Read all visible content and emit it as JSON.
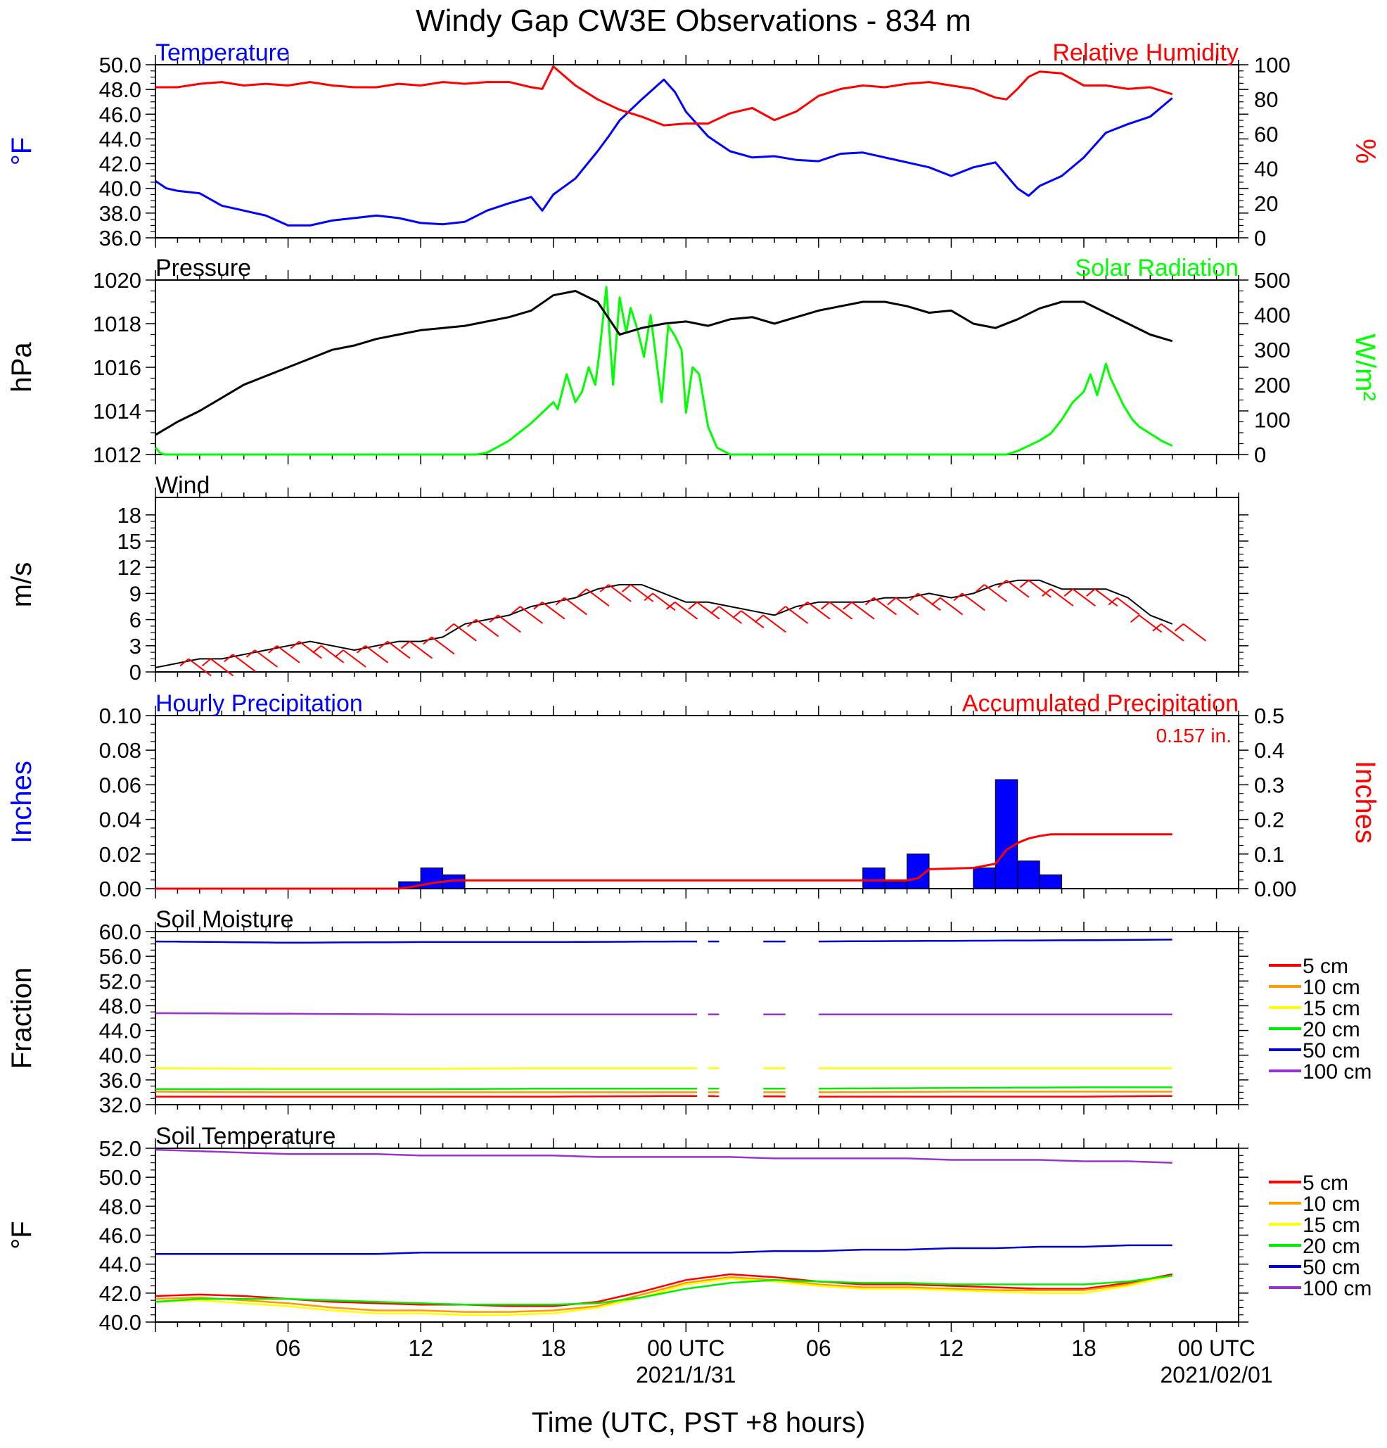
{
  "title": "Windy Gap CW3E Observations - 834 m",
  "xaxis": {
    "title": "Time (UTC, PST +8 hours)",
    "ticks": [
      {
        "hour": 6,
        "label": "06",
        "sub": ""
      },
      {
        "hour": 12,
        "label": "12",
        "sub": ""
      },
      {
        "hour": 18,
        "label": "18",
        "sub": ""
      },
      {
        "hour": 24,
        "label": "00 UTC",
        "sub": "2021/1/31"
      },
      {
        "hour": 30,
        "label": "06",
        "sub": ""
      },
      {
        "hour": 36,
        "label": "12",
        "sub": ""
      },
      {
        "hour": 42,
        "label": "18",
        "sub": ""
      },
      {
        "hour": 48,
        "label": "00 UTC",
        "sub": "2021/02/01"
      }
    ],
    "range_hours": [
      0,
      49
    ]
  },
  "colors": {
    "temperature": "#0000ff",
    "humidity": "#ff0000",
    "pressure": "#000000",
    "solar": "#00ff00",
    "wind": "#000000",
    "barbs": "#ff0000",
    "precip_bars": "#0000ff",
    "accum": "#ff0000",
    "depths": [
      "#ff0000",
      "#ff9900",
      "#ffff00",
      "#00ee00",
      "#0000cc",
      "#9933cc"
    ]
  },
  "chart_data": [
    {
      "id": "temp_rh",
      "type": "line",
      "left_label": "Temperature",
      "right_label": "Relative Humidity",
      "ylabel_left": "°F",
      "ylabel_right": "%",
      "ylim": [
        36,
        50
      ],
      "yticks_left": [
        "36.0",
        "38.0",
        "40.0",
        "42.0",
        "44.0",
        "46.0",
        "48.0",
        "50.0"
      ],
      "ylim_right": [
        0,
        100
      ],
      "yticks_right": [
        "0",
        "20",
        "40",
        "60",
        "80",
        "100"
      ],
      "series": [
        {
          "name": "Temperature",
          "axis": "left",
          "x": [
            0,
            0.5,
            1,
            2,
            3,
            4,
            5,
            6,
            7,
            8,
            9,
            10,
            11,
            12,
            13,
            14,
            15,
            16,
            17,
            17.5,
            18,
            19,
            20,
            20.5,
            21,
            22,
            23,
            23.5,
            24,
            25,
            26,
            27,
            28,
            29,
            30,
            31,
            32,
            33,
            34,
            35,
            36,
            37,
            38,
            39,
            39.5,
            40,
            41,
            42,
            43,
            44,
            45,
            46
          ],
          "y": [
            40.6,
            40.0,
            39.8,
            39.6,
            38.6,
            38.2,
            37.8,
            37.0,
            37.0,
            37.4,
            37.6,
            37.8,
            37.6,
            37.2,
            37.1,
            37.3,
            38.2,
            38.8,
            39.3,
            38.2,
            39.5,
            40.8,
            43.0,
            44.2,
            45.5,
            47.2,
            48.8,
            47.8,
            46.2,
            44.2,
            43.0,
            42.5,
            42.6,
            42.3,
            42.2,
            42.8,
            42.9,
            42.5,
            42.1,
            41.7,
            41.0,
            41.7,
            42.1,
            40.0,
            39.4,
            40.2,
            41.0,
            42.5,
            44.5,
            45.2,
            45.8,
            47.3
          ]
        },
        {
          "name": "Relative Humidity",
          "axis": "right",
          "x": [
            0,
            1,
            2,
            3,
            4,
            5,
            6,
            7,
            8,
            9,
            10,
            11,
            12,
            13,
            14,
            15,
            16,
            17,
            17.5,
            18,
            19,
            20,
            21,
            22,
            23,
            24,
            25,
            26,
            27,
            28,
            29,
            30,
            31,
            32,
            33,
            34,
            35,
            36,
            37,
            38,
            38.5,
            39,
            39.5,
            40,
            41,
            42,
            43,
            44,
            45,
            46
          ],
          "y": [
            87,
            87,
            89,
            90,
            88,
            89,
            88,
            90,
            88,
            87,
            87,
            89,
            88,
            90,
            89,
            90,
            90,
            87,
            86,
            99,
            88,
            80,
            74,
            70,
            65,
            66,
            66,
            72,
            75,
            68,
            73,
            82,
            86,
            88,
            87,
            89,
            90,
            88,
            86,
            81,
            80,
            86,
            93,
            96,
            95,
            88,
            88,
            86,
            87,
            83
          ]
        }
      ]
    },
    {
      "id": "pressure_solar",
      "type": "line",
      "left_label": "Pressure",
      "right_label": "Solar Radiation",
      "ylabel_left": "hPa",
      "ylabel_right": "W/m²",
      "ylim": [
        1012,
        1020
      ],
      "yticks_left": [
        "1012",
        "1014",
        "1016",
        "1018",
        "1020"
      ],
      "ylim_right": [
        0,
        500
      ],
      "yticks_right": [
        "0",
        "100",
        "200",
        "300",
        "400",
        "500"
      ],
      "series": [
        {
          "name": "Pressure",
          "axis": "left",
          "x": [
            0,
            1,
            2,
            3,
            4,
            5,
            6,
            7,
            8,
            9,
            10,
            11,
            12,
            13,
            14,
            15,
            16,
            17,
            18,
            19,
            20,
            21,
            22,
            23,
            24,
            25,
            26,
            27,
            28,
            29,
            30,
            31,
            32,
            33,
            34,
            35,
            36,
            37,
            38,
            39,
            40,
            41,
            42,
            43,
            44,
            45,
            46
          ],
          "y": [
            1012.9,
            1013.5,
            1014.0,
            1014.6,
            1015.2,
            1015.6,
            1016.0,
            1016.4,
            1016.8,
            1017.0,
            1017.3,
            1017.5,
            1017.7,
            1017.8,
            1017.9,
            1018.1,
            1018.3,
            1018.6,
            1019.3,
            1019.5,
            1019.0,
            1017.5,
            1017.8,
            1018.0,
            1018.1,
            1017.9,
            1018.2,
            1018.3,
            1018.0,
            1018.3,
            1018.6,
            1018.8,
            1019.0,
            1019.0,
            1018.8,
            1018.5,
            1018.6,
            1018.0,
            1017.8,
            1018.2,
            1018.7,
            1019.0,
            1019.0,
            1018.5,
            1018.0,
            1017.5,
            1017.2
          ]
        },
        {
          "name": "Solar Radiation",
          "axis": "right",
          "x": [
            0,
            0.2,
            0.4,
            10,
            14.5,
            15,
            16,
            17,
            17.5,
            18,
            18.2,
            18.6,
            19,
            19.3,
            19.6,
            19.9,
            20.1,
            20.4,
            20.7,
            21,
            21.3,
            21.5,
            21.8,
            22.1,
            22.4,
            22.6,
            22.9,
            23.2,
            23.5,
            23.8,
            24,
            24.3,
            24.6,
            25,
            25.4,
            26,
            30,
            38,
            38.5,
            39,
            40,
            40.5,
            41,
            41.5,
            42,
            42.3,
            42.6,
            43,
            43.2,
            43.5,
            43.8,
            44.2,
            44.5,
            45,
            45.5,
            46
          ],
          "y": [
            20,
            5,
            0,
            0,
            0,
            5,
            40,
            90,
            120,
            150,
            130,
            230,
            150,
            180,
            250,
            200,
            300,
            480,
            200,
            450,
            350,
            420,
            360,
            280,
            400,
            300,
            150,
            370,
            340,
            300,
            120,
            250,
            230,
            80,
            20,
            0,
            0,
            0,
            0,
            10,
            40,
            60,
            100,
            150,
            180,
            230,
            170,
            260,
            220,
            180,
            140,
            100,
            80,
            60,
            40,
            25
          ]
        }
      ]
    },
    {
      "id": "wind",
      "type": "line",
      "left_label": "Wind",
      "ylabel_left": "m/s",
      "ylim": [
        0,
        20
      ],
      "yticks_left": [
        "0",
        "3",
        "6",
        "9",
        "12",
        "15",
        "18"
      ],
      "series": [
        {
          "name": "Wind",
          "axis": "left",
          "x": [
            0,
            1,
            2,
            3,
            4,
            5,
            6,
            7,
            8,
            9,
            10,
            11,
            12,
            13,
            14,
            15,
            16,
            17,
            18,
            19,
            20,
            21,
            22,
            23,
            24,
            25,
            26,
            27,
            28,
            29,
            30,
            31,
            32,
            33,
            34,
            35,
            36,
            37,
            38,
            39,
            40,
            41,
            42,
            43,
            44,
            45,
            46
          ],
          "y": [
            0.5,
            1.0,
            1.5,
            1.5,
            2.0,
            2.5,
            3.0,
            3.5,
            3.0,
            2.5,
            3.0,
            3.5,
            3.5,
            4.0,
            5.5,
            6.0,
            6.5,
            7.5,
            8.0,
            8.5,
            9.5,
            10.0,
            10.0,
            9.0,
            8.0,
            8.0,
            7.5,
            7.0,
            6.5,
            7.5,
            8.0,
            8.0,
            8.0,
            8.5,
            8.5,
            9.0,
            8.5,
            9.0,
            10.0,
            10.5,
            10.5,
            9.5,
            9.5,
            9.5,
            8.5,
            6.5,
            5.5
          ]
        }
      ],
      "barbs_hours": [
        2,
        3,
        4,
        5,
        6,
        7,
        8,
        9,
        10,
        11,
        12,
        13,
        14,
        15,
        16,
        17,
        18,
        19,
        20,
        21,
        22,
        23,
        24,
        25,
        26,
        27,
        28,
        29,
        30,
        31,
        32,
        33,
        34,
        35,
        36,
        37,
        38,
        39,
        40,
        41,
        42,
        43,
        44,
        45,
        46,
        47
      ]
    },
    {
      "id": "precip",
      "type": "bar",
      "left_label": "Hourly Precipitation",
      "right_label": "Accumulated Precipitation",
      "annotation": "0.157 in.",
      "ylabel_left": "Inches",
      "ylabel_right": "Inches",
      "ylim": [
        0,
        0.1
      ],
      "yticks_left": [
        "0.00",
        "0.02",
        "0.04",
        "0.06",
        "0.08",
        "0.10"
      ],
      "ylim_right": [
        0,
        0.5
      ],
      "yticks_right": [
        "0.00",
        "0.1",
        "0.2",
        "0.3",
        "0.4",
        "0.5"
      ],
      "hours": [
        11,
        12,
        13,
        32,
        33,
        34,
        37,
        38,
        39,
        40,
        41
      ],
      "values": [
        0.004,
        0.012,
        0.008,
        0.012,
        0.004,
        0.02,
        0.012,
        0.063,
        0.016,
        0.008,
        0.0
      ],
      "accumulated": {
        "name": "Accumulated Precipitation",
        "x": [
          0,
          11,
          11.5,
          12,
          12.5,
          13,
          13.5,
          14,
          32,
          34,
          34.5,
          35,
          37,
          38,
          38.5,
          39,
          39.5,
          40,
          40.5,
          41,
          46
        ],
        "y": [
          0,
          0,
          0.004,
          0.01,
          0.016,
          0.02,
          0.024,
          0.024,
          0.024,
          0.024,
          0.03,
          0.056,
          0.06,
          0.072,
          0.112,
          0.132,
          0.145,
          0.152,
          0.157,
          0.157,
          0.157
        ]
      }
    },
    {
      "id": "soil_moisture",
      "type": "line",
      "left_label": "Soil Moisture",
      "ylabel_left": "Fraction",
      "ylim": [
        32,
        60
      ],
      "yticks_left": [
        "32.0",
        "36.0",
        "40.0",
        "44.0",
        "48.0",
        "52.0",
        "56.0",
        "60.0"
      ],
      "gaps": [
        [
          24.5,
          25.0
        ],
        [
          25.5,
          27.5
        ],
        [
          28.5,
          30.0
        ]
      ],
      "series": [
        {
          "name": "5 cm",
          "values": [
            33.3,
            33.3,
            33.3,
            33.3,
            33.4,
            33.3,
            33.3,
            33.3,
            33.4
          ]
        },
        {
          "name": "10 cm",
          "values": [
            34.1,
            34.0,
            34.0,
            34.0,
            34.0,
            34.0,
            34.1,
            34.1,
            34.1
          ]
        },
        {
          "name": "15 cm",
          "values": [
            37.9,
            37.8,
            37.8,
            37.9,
            37.9,
            37.9,
            37.9,
            37.9,
            37.9
          ]
        },
        {
          "name": "20 cm",
          "values": [
            34.5,
            34.5,
            34.5,
            34.6,
            34.6,
            34.6,
            34.7,
            34.8,
            34.8
          ]
        },
        {
          "name": "50 cm",
          "values": [
            58.4,
            58.2,
            58.3,
            58.3,
            58.4,
            58.4,
            58.5,
            58.6,
            58.7
          ]
        },
        {
          "name": "100 cm",
          "values": [
            46.8,
            46.7,
            46.6,
            46.6,
            46.6,
            46.6,
            46.6,
            46.6,
            46.6
          ]
        }
      ],
      "x": [
        0,
        6,
        12,
        18,
        24,
        30,
        36,
        42,
        46
      ]
    },
    {
      "id": "soil_temp",
      "type": "line",
      "left_label": "Soil Temperature",
      "ylabel_left": "°F",
      "ylim": [
        40,
        52
      ],
      "yticks_left": [
        "40.0",
        "42.0",
        "44.0",
        "46.0",
        "48.0",
        "50.0",
        "52.0"
      ],
      "x": [
        0,
        2,
        4,
        6,
        8,
        10,
        12,
        14,
        16,
        18,
        20,
        22,
        24,
        26,
        28,
        30,
        32,
        34,
        36,
        38,
        40,
        42,
        44,
        46
      ],
      "series": [
        {
          "name": "5 cm",
          "values": [
            41.8,
            41.9,
            41.8,
            41.6,
            41.4,
            41.3,
            41.2,
            41.2,
            41.1,
            41.1,
            41.4,
            42.1,
            42.9,
            43.3,
            43.1,
            42.8,
            42.6,
            42.6,
            42.5,
            42.4,
            42.3,
            42.3,
            42.7,
            43.3
          ]
        },
        {
          "name": "10 cm",
          "values": [
            41.6,
            41.7,
            41.5,
            41.3,
            41.0,
            40.8,
            40.8,
            40.7,
            40.7,
            40.8,
            41.1,
            41.9,
            42.7,
            43.1,
            42.9,
            42.6,
            42.4,
            42.4,
            42.3,
            42.2,
            42.2,
            42.2,
            42.6,
            43.2
          ]
        },
        {
          "name": "15 cm",
          "values": [
            41.4,
            41.5,
            41.3,
            41.1,
            40.8,
            40.6,
            40.6,
            40.5,
            40.5,
            40.6,
            41.0,
            41.7,
            42.6,
            43.0,
            42.8,
            42.5,
            42.3,
            42.3,
            42.2,
            42.1,
            42.0,
            42.0,
            42.5,
            43.2
          ]
        },
        {
          "name": "20 cm",
          "values": [
            41.4,
            41.6,
            41.6,
            41.6,
            41.5,
            41.4,
            41.3,
            41.2,
            41.2,
            41.2,
            41.3,
            41.7,
            42.3,
            42.7,
            42.9,
            42.8,
            42.7,
            42.7,
            42.6,
            42.6,
            42.6,
            42.6,
            42.8,
            43.2
          ]
        },
        {
          "name": "50 cm",
          "values": [
            44.7,
            44.7,
            44.7,
            44.7,
            44.7,
            44.7,
            44.8,
            44.8,
            44.8,
            44.8,
            44.8,
            44.8,
            44.8,
            44.8,
            44.9,
            44.9,
            45.0,
            45.0,
            45.1,
            45.1,
            45.2,
            45.2,
            45.3,
            45.3
          ]
        },
        {
          "name": "100 cm",
          "values": [
            51.9,
            51.8,
            51.7,
            51.6,
            51.6,
            51.6,
            51.5,
            51.5,
            51.5,
            51.5,
            51.4,
            51.4,
            51.4,
            51.4,
            51.3,
            51.3,
            51.3,
            51.3,
            51.2,
            51.2,
            51.2,
            51.1,
            51.1,
            51.0
          ]
        }
      ]
    }
  ]
}
